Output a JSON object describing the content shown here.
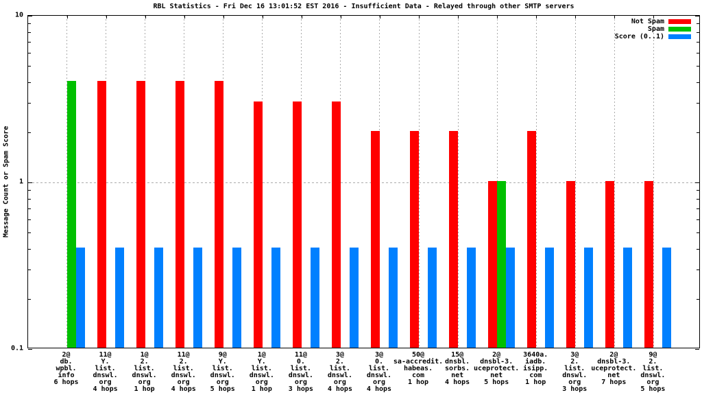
{
  "chart_data": {
    "type": "bar",
    "title": "RBL Statistics - Fri Dec 16 13:01:52 EST 2016 - Insufficient Data - Relayed through other SMTP servers",
    "ylabel": "Message Count or Spam Score",
    "xlabel": "",
    "yscale": "log",
    "ylim": [
      0.1,
      10
    ],
    "ytick_labels": [
      "10",
      "1",
      "0.1"
    ],
    "ytick_values": [
      10,
      1,
      0.1
    ],
    "grid": true,
    "legend_position": "top-right-inside",
    "grid_color": "#aaaaaa",
    "categories": [
      [
        "2@",
        "db.",
        "wpbl.",
        "info",
        "6 hops"
      ],
      [
        "11@",
        "Y.",
        "list.",
        "dnswl.",
        "org",
        "4 hops"
      ],
      [
        "1@",
        "2.",
        "list.",
        "dnswl.",
        "org",
        "1 hop"
      ],
      [
        "11@",
        "2.",
        "list.",
        "dnswl.",
        "org",
        "4 hops"
      ],
      [
        "9@",
        "Y.",
        "list.",
        "dnswl.",
        "org",
        "5 hops"
      ],
      [
        "1@",
        "Y.",
        "list.",
        "dnswl.",
        "org",
        "1 hop"
      ],
      [
        "11@",
        "0.",
        "list.",
        "dnswl.",
        "org",
        "3 hops"
      ],
      [
        "3@",
        "2.",
        "list.",
        "dnswl.",
        "org",
        "4 hops"
      ],
      [
        "3@",
        "0.",
        "list.",
        "dnswl.",
        "org",
        "4 hops"
      ],
      [
        "50@",
        "sa-accredit.",
        "habeas.",
        "com",
        "1 hop"
      ],
      [
        "15@",
        "dnsbl.",
        "sorbs.",
        "net",
        "4 hops"
      ],
      [
        "2@",
        "dnsbl-3.",
        "uceprotect.",
        "net",
        "5 hops"
      ],
      [
        "3640a.",
        "iadb.",
        "isipp.",
        "com",
        "1 hop"
      ],
      [
        "3@",
        "2.",
        "list.",
        "dnswl.",
        "org",
        "3 hops"
      ],
      [
        "2@",
        "dnsbl-3.",
        "uceprotect.",
        "net",
        "7 hops"
      ],
      [
        "9@",
        "2.",
        "list.",
        "dnswl.",
        "org",
        "5 hops"
      ]
    ],
    "series": [
      {
        "name": "Not Spam",
        "key": "not-spam",
        "color": "#ff0000",
        "values": [
          0,
          4,
          4,
          4,
          4,
          3,
          3,
          3,
          2,
          2,
          2,
          1,
          2,
          1,
          1,
          1
        ]
      },
      {
        "name": "Spam",
        "key": "spam",
        "color": "#00c000",
        "values": [
          4,
          0,
          0,
          0,
          0,
          0,
          0,
          0,
          0,
          0,
          0,
          1,
          0,
          0,
          0,
          0
        ]
      },
      {
        "name": "Score (0..1)",
        "key": "score",
        "color": "#0080ff",
        "values": [
          0.4,
          0.4,
          0.4,
          0.4,
          0.4,
          0.4,
          0.4,
          0.4,
          0.4,
          0.4,
          0.4,
          0.4,
          0.4,
          0.4,
          0.4,
          0.4
        ]
      }
    ]
  }
}
